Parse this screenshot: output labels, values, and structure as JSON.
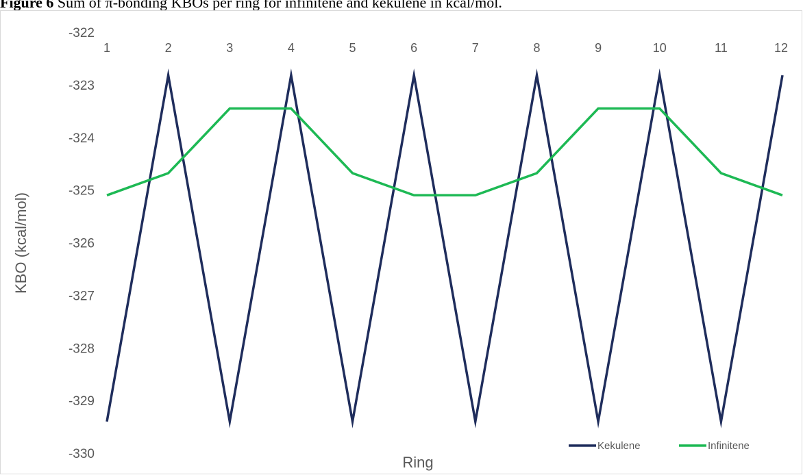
{
  "caption": {
    "label": "Figure 6",
    "text": " Sum of π-bonding KBOs per ring for infinitene and kekulene in kcal/mol."
  },
  "chart_data": {
    "type": "line",
    "title": "",
    "xlabel": "Ring",
    "ylabel": "KBO (kcal/mol)",
    "categories": [
      "1",
      "2",
      "3",
      "4",
      "5",
      "6",
      "7",
      "8",
      "9",
      "10",
      "11",
      "12"
    ],
    "ylim": [
      -330,
      -322
    ],
    "yticks": [
      -322,
      -323,
      -324,
      -325,
      -326,
      -327,
      -328,
      -329,
      -330
    ],
    "grid": false,
    "legend_position": "bottom-right",
    "series": [
      {
        "name": "Kekulene",
        "color": "#1f2d5c",
        "values": [
          -329.4,
          -322.82,
          -329.4,
          -322.82,
          -329.4,
          -322.82,
          -329.4,
          -322.82,
          -329.4,
          -322.82,
          -329.4,
          -322.82
        ]
      },
      {
        "name": "Infinitene",
        "color": "#1db954",
        "values": [
          -325.1,
          -324.68,
          -323.45,
          -323.45,
          -324.68,
          -325.1,
          -325.1,
          -324.68,
          -323.45,
          -323.45,
          -324.68,
          -325.1
        ]
      }
    ]
  }
}
